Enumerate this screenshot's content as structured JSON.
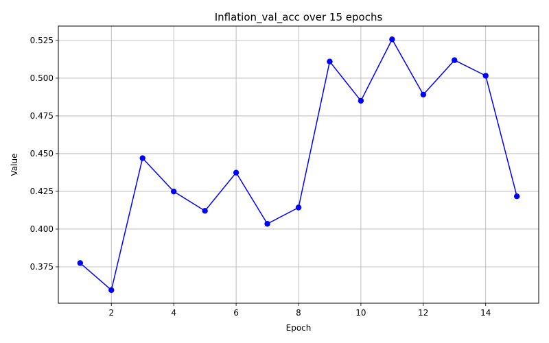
{
  "chart_data": {
    "type": "line",
    "title": "Inflation_val_acc over 15 epochs",
    "xlabel": "Epoch",
    "ylabel": "Value",
    "x": [
      1,
      2,
      3,
      4,
      5,
      6,
      7,
      8,
      9,
      10,
      11,
      12,
      13,
      14,
      15
    ],
    "series": [
      {
        "values": [
          0.3775,
          0.3596,
          0.447,
          0.4249,
          0.4121,
          0.4374,
          0.4035,
          0.4143,
          0.511,
          0.485,
          0.5257,
          0.4891,
          0.5119,
          0.5016,
          0.4217
        ],
        "color": "#0000ff",
        "marker": "circle"
      }
    ],
    "xlim": [
      0.3,
      15.7
    ],
    "ylim": [
      0.3509,
      0.5345
    ],
    "xticks": [
      2,
      4,
      6,
      8,
      10,
      12,
      14
    ],
    "xtick_labels": [
      "2",
      "4",
      "6",
      "8",
      "10",
      "12",
      "14"
    ],
    "yticks": [
      0.375,
      0.4,
      0.425,
      0.45,
      0.475,
      0.5,
      0.525
    ],
    "ytick_labels": [
      "0.375",
      "0.400",
      "0.425",
      "0.450",
      "0.475",
      "0.500",
      "0.525"
    ],
    "grid": true,
    "legend": "none"
  }
}
